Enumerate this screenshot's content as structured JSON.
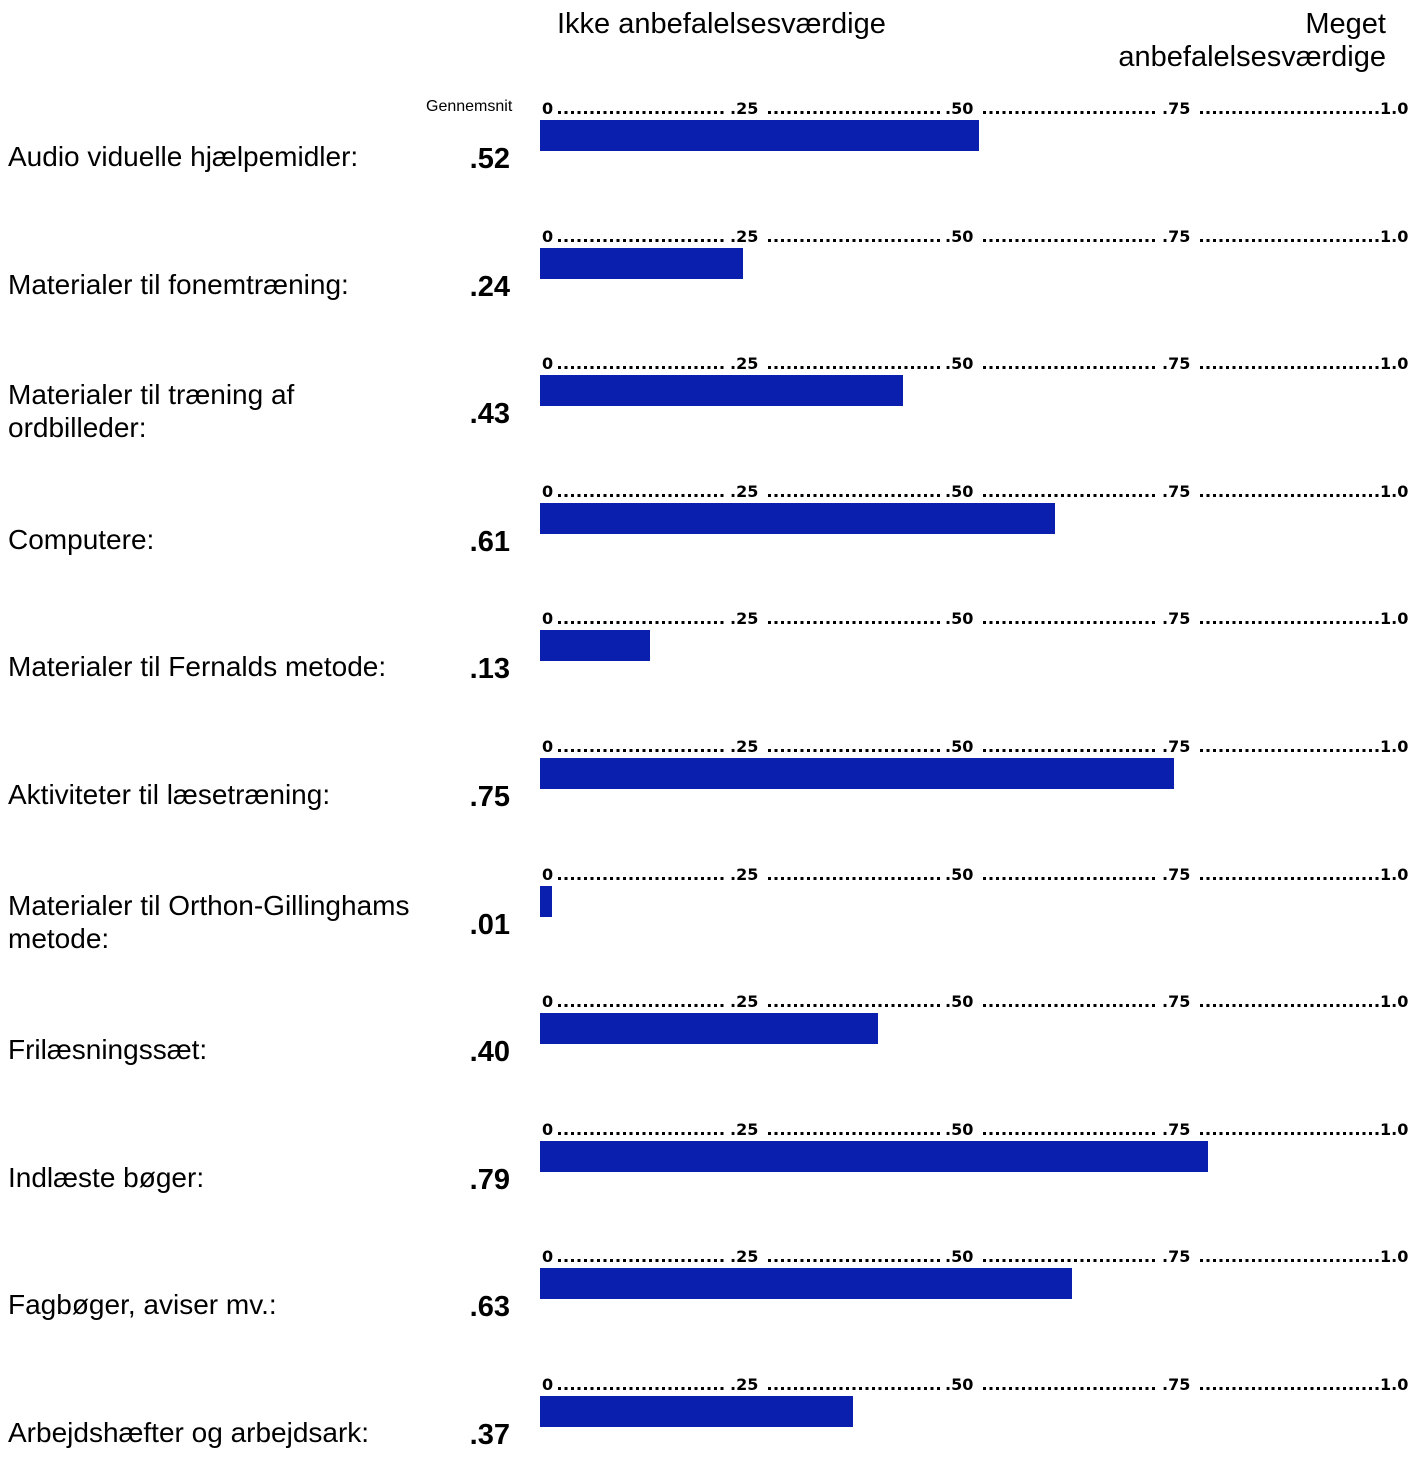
{
  "header": {
    "left_label": "Ikke anbefalelsesværdige",
    "right_label": "Meget anbefalelsesværdige",
    "average_label": "Gennemsnit"
  },
  "colors": {
    "bar": "#0a1fad"
  },
  "chart_data": {
    "type": "bar",
    "orientation": "horizontal",
    "xlim": [
      0,
      1.0
    ],
    "scale_ticks": [
      "0",
      ".25",
      ".50",
      ".75",
      "1.0"
    ],
    "categories": [
      "Audio viduelle hjælpemidler:",
      "Materialer til fonemtræning:",
      "Materialer til træning af ordbilleder:",
      "Computere:",
      "Materialer til Fernalds metode:",
      "Aktiviteter til læsetræning:",
      "Materialer til Orthon-Gillinghams metode:",
      "Frilæsningssæt:",
      "Indlæste bøger:",
      "Fagbøger, aviser mv.:",
      "Arbejdshæfter og arbejdsark:"
    ],
    "values": [
      0.52,
      0.24,
      0.43,
      0.61,
      0.13,
      0.75,
      0.01,
      0.4,
      0.79,
      0.63,
      0.37
    ],
    "value_labels": [
      ".52",
      ".24",
      ".43",
      ".61",
      ".13",
      ".75",
      ".01",
      ".40",
      ".79",
      ".63",
      ".37"
    ]
  }
}
